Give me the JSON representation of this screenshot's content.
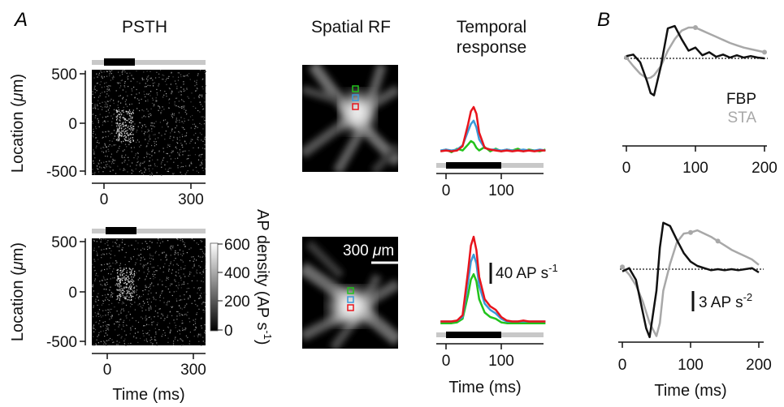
{
  "panels": {
    "a": "A",
    "b": "B"
  },
  "psth": {
    "title": "PSTH",
    "ylabel_pre": "Location (",
    "ylabel_mu": "μ",
    "ylabel_post": "m)",
    "yticks": [
      "500",
      "0",
      "-500"
    ],
    "xticks": [
      "0",
      "300"
    ],
    "xlabel": "Time (ms)",
    "colorbar_ticks": [
      "600",
      "400",
      "200",
      "0"
    ],
    "colorbar_label": "AP density (AP s",
    "colorbar_label_exp": "-1",
    "colorbar_label_end": ")"
  },
  "rf": {
    "title": "Spatial RF",
    "scalebar_pre": "300 ",
    "scalebar_mu": "μ",
    "scalebar_post": "m"
  },
  "temporal": {
    "title_line1": "Temporal",
    "title_line2": "response",
    "scalebar": "40 AP s",
    "scalebar_exp": "-1",
    "xticks": [
      "0",
      "100"
    ],
    "xlabel": "Time (ms)"
  },
  "filters": {
    "legend": [
      {
        "name": "FBP",
        "color": "#111111"
      },
      {
        "name": "STA",
        "color": "#a8a8a8"
      }
    ],
    "xticks": [
      "0",
      "100",
      "200"
    ],
    "xlabel": "Time (ms)",
    "scalebar": "3 AP s",
    "scalebar_exp": "-2"
  },
  "colors": {
    "red": "#e8141c",
    "blue": "#3a9ad9",
    "green": "#22c31c",
    "stim": "#c8c8c8",
    "black": "#111111"
  },
  "chart_data": [
    {
      "type": "line",
      "title": "Temporal response",
      "row": "top",
      "x": [
        -10,
        0,
        10,
        20,
        30,
        40,
        45,
        50,
        55,
        60,
        70,
        80,
        90,
        100,
        110,
        120,
        130,
        140,
        150,
        160,
        170,
        180
      ],
      "series": [
        {
          "values": [
            8,
            9,
            8,
            9,
            14,
            40,
            55,
            60,
            52,
            30,
            12,
            10,
            9,
            8,
            9,
            8,
            9,
            8,
            9,
            8,
            9,
            9
          ]
        },
        {
          "values": [
            9,
            10,
            9,
            10,
            15,
            32,
            40,
            44,
            36,
            22,
            12,
            10,
            10,
            9,
            10,
            9,
            9,
            10,
            9,
            9,
            10,
            9
          ]
        },
        {
          "values": [
            8,
            10,
            7,
            11,
            9,
            16,
            20,
            18,
            12,
            9,
            13,
            8,
            11,
            8,
            10,
            9,
            11,
            8,
            10,
            9,
            8,
            10
          ]
        }
      ],
      "stimulus_ms": [
        0,
        100
      ]
    },
    {
      "type": "line",
      "title": "Temporal response",
      "row": "bottom",
      "x": [
        -10,
        0,
        10,
        20,
        30,
        40,
        45,
        50,
        55,
        60,
        70,
        80,
        90,
        100,
        110,
        120,
        130,
        140,
        150,
        160,
        170,
        180
      ],
      "series": [
        {
          "values": [
            5,
            5,
            5,
            6,
            12,
            62,
            90,
            100,
            85,
            55,
            30,
            22,
            18,
            10,
            6,
            5,
            5,
            6,
            5,
            5,
            5,
            5
          ]
        },
        {
          "values": [
            5,
            5,
            5,
            6,
            10,
            50,
            72,
            80,
            70,
            45,
            25,
            18,
            14,
            8,
            5,
            5,
            5,
            5,
            5,
            5,
            5,
            5
          ]
        },
        {
          "values": [
            3,
            3,
            3,
            4,
            8,
            35,
            52,
            58,
            50,
            30,
            15,
            10,
            8,
            4,
            3,
            3,
            3,
            3,
            3,
            3,
            3,
            3
          ]
        }
      ],
      "stimulus_ms": [
        0,
        100
      ]
    },
    {
      "type": "line",
      "title": "",
      "row": "top",
      "x": [
        0,
        10,
        20,
        30,
        35,
        40,
        50,
        55,
        60,
        70,
        80,
        90,
        100,
        110,
        120,
        130,
        140,
        150,
        160,
        170,
        180,
        190,
        200
      ],
      "series": [
        {
          "name": "FBP",
          "values": [
            0.3,
            0.5,
            -0.5,
            -3,
            -4.5,
            -4.8,
            -1,
            1.5,
            3.9,
            4.2,
            2.5,
            1,
            1.4,
            0.4,
            0.8,
            0.2,
            0.5,
            0.1,
            0.4,
            0.1,
            0.3,
            0.1,
            0.0
          ]
        },
        {
          "name": "STA",
          "values": [
            0.1,
            -1,
            -2,
            -2.6,
            -2.5,
            -2.2,
            -1,
            0,
            1,
            2.5,
            3.6,
            4.0,
            4.0,
            3.6,
            3.2,
            2.8,
            2.4,
            2.0,
            1.7,
            1.4,
            1.2,
            1.0,
            0.8
          ]
        }
      ],
      "baseline": 0
    },
    {
      "type": "line",
      "title": "",
      "row": "bottom",
      "x": [
        0,
        10,
        20,
        30,
        35,
        40,
        50,
        55,
        60,
        70,
        80,
        90,
        100,
        110,
        120,
        130,
        140,
        150,
        160,
        170,
        180,
        190,
        200
      ],
      "series": [
        {
          "name": "FBP",
          "values": [
            -0.2,
            0.1,
            -1,
            -4,
            -5.5,
            -6.3,
            -2,
            2,
            4.3,
            4.0,
            2.7,
            1.5,
            0.7,
            0.3,
            0.1,
            -0.1,
            0.0,
            -0.1,
            0.0,
            -0.1,
            0.0,
            0.1,
            -0.3
          ]
        },
        {
          "name": "STA",
          "values": [
            0.2,
            -0.5,
            -1.5,
            -3,
            -4,
            -5,
            -6.2,
            -5,
            -2,
            0.5,
            2.5,
            3.3,
            3.4,
            3.6,
            3.3,
            3.0,
            2.6,
            2.2,
            1.8,
            1.5,
            1.2,
            0.9,
            0.4
          ]
        }
      ],
      "baseline": 0
    }
  ]
}
